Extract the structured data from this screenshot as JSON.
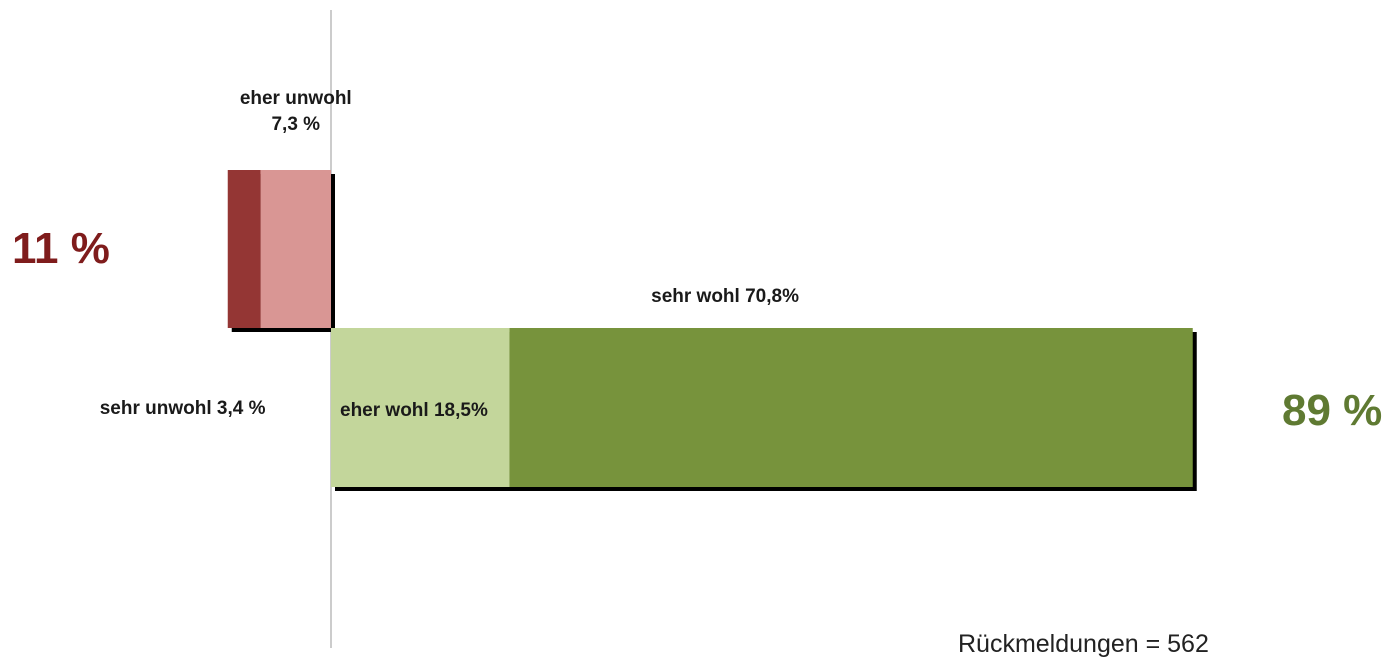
{
  "colors": {
    "sehr_unwohl": "#943634",
    "eher_unwohl": "#d99694",
    "eher_wohl": "#c3d69b",
    "sehr_wohl": "#77933c",
    "total_negative": "#7f1c1c",
    "total_positive": "#5f7a32",
    "shadow": "#000000",
    "axis": "#999999"
  },
  "chart_data": {
    "type": "bar",
    "orientation": "horizontal-diverging",
    "unit": "%",
    "rows": [
      {
        "side": "negative",
        "segments": [
          {
            "category": "sehr unwohl",
            "value": 3.4,
            "color_key": "sehr_unwohl"
          },
          {
            "category": "eher unwohl",
            "value": 7.3,
            "color_key": "eher_unwohl"
          }
        ],
        "total_label": "11 %"
      },
      {
        "side": "positive",
        "segments": [
          {
            "category": "eher wohl",
            "value": 18.5,
            "color_key": "eher_wohl"
          },
          {
            "category": "sehr wohl",
            "value": 70.8,
            "color_key": "sehr_wohl"
          }
        ],
        "total_label": "89 %"
      }
    ],
    "data_labels": {
      "eher_unwohl_line1": "eher unwohl",
      "eher_unwohl_line2": "7,3 %",
      "sehr_unwohl": "sehr unwohl 3,4 %",
      "eher_wohl": "eher wohl 18,5%",
      "sehr_wohl": "sehr wohl 70,8%"
    },
    "note": "Rückmeldungen = 562"
  }
}
